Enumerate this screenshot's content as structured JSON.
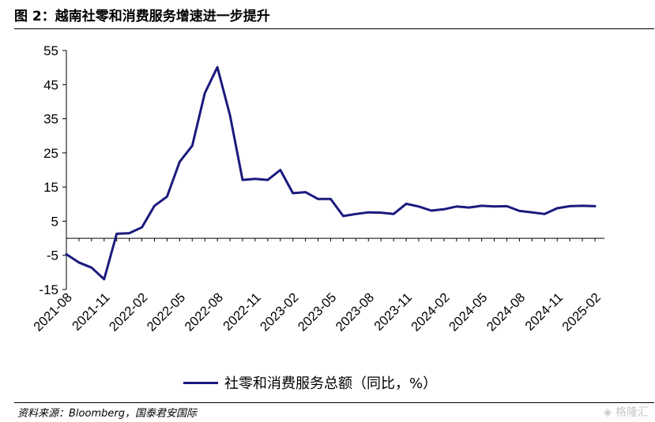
{
  "figure": {
    "title": "图 2：越南社零和消费服务增速进一步提升",
    "source": "资料来源：Bloomberg，国泰君安国际",
    "watermark": "格隆汇"
  },
  "chart_data": {
    "type": "line",
    "x": [
      "2021-08",
      "2021-09",
      "2021-10",
      "2021-11",
      "2021-12",
      "2022-01",
      "2022-02",
      "2022-03",
      "2022-04",
      "2022-05",
      "2022-06",
      "2022-07",
      "2022-08",
      "2022-09",
      "2022-10",
      "2022-11",
      "2022-12",
      "2023-01",
      "2023-02",
      "2023-03",
      "2023-04",
      "2023-05",
      "2023-06",
      "2023-07",
      "2023-08",
      "2023-09",
      "2023-10",
      "2023-11",
      "2023-12",
      "2024-01",
      "2024-02",
      "2024-03",
      "2024-04",
      "2024-05",
      "2024-06",
      "2024-07",
      "2024-08",
      "2024-09",
      "2024-10",
      "2024-11",
      "2024-12",
      "2025-01",
      "2025-02"
    ],
    "xticks": [
      "2021-08",
      "2021-11",
      "2022-02",
      "2022-05",
      "2022-08",
      "2022-11",
      "2023-02",
      "2023-05",
      "2023-08",
      "2023-11",
      "2024-02",
      "2024-05",
      "2024-08",
      "2024-11",
      "2025-02"
    ],
    "series": [
      {
        "name": "社零和消费服务总额（同比，%）",
        "color": "#1a1a7e",
        "values": [
          -4.7,
          -7.1,
          -8.6,
          -12.0,
          1.3,
          1.5,
          3.2,
          9.5,
          12.2,
          22.4,
          27.1,
          42.5,
          50.1,
          36.0,
          17.1,
          17.4,
          17.1,
          20.0,
          13.2,
          13.5,
          11.5,
          11.5,
          6.5,
          7.1,
          7.6,
          7.5,
          7.1,
          10.1,
          9.3,
          8.1,
          8.5,
          9.3,
          9.0,
          9.5,
          9.3,
          9.4,
          8.0,
          7.6,
          7.1,
          8.8,
          9.4,
          9.5,
          9.4
        ]
      }
    ],
    "xlabel": "",
    "ylabel": "",
    "ylim": [
      -15,
      55
    ],
    "yticks": [
      -15,
      -5,
      5,
      15,
      25,
      35,
      45,
      55
    ],
    "grid": false,
    "legend_position": "bottom"
  }
}
